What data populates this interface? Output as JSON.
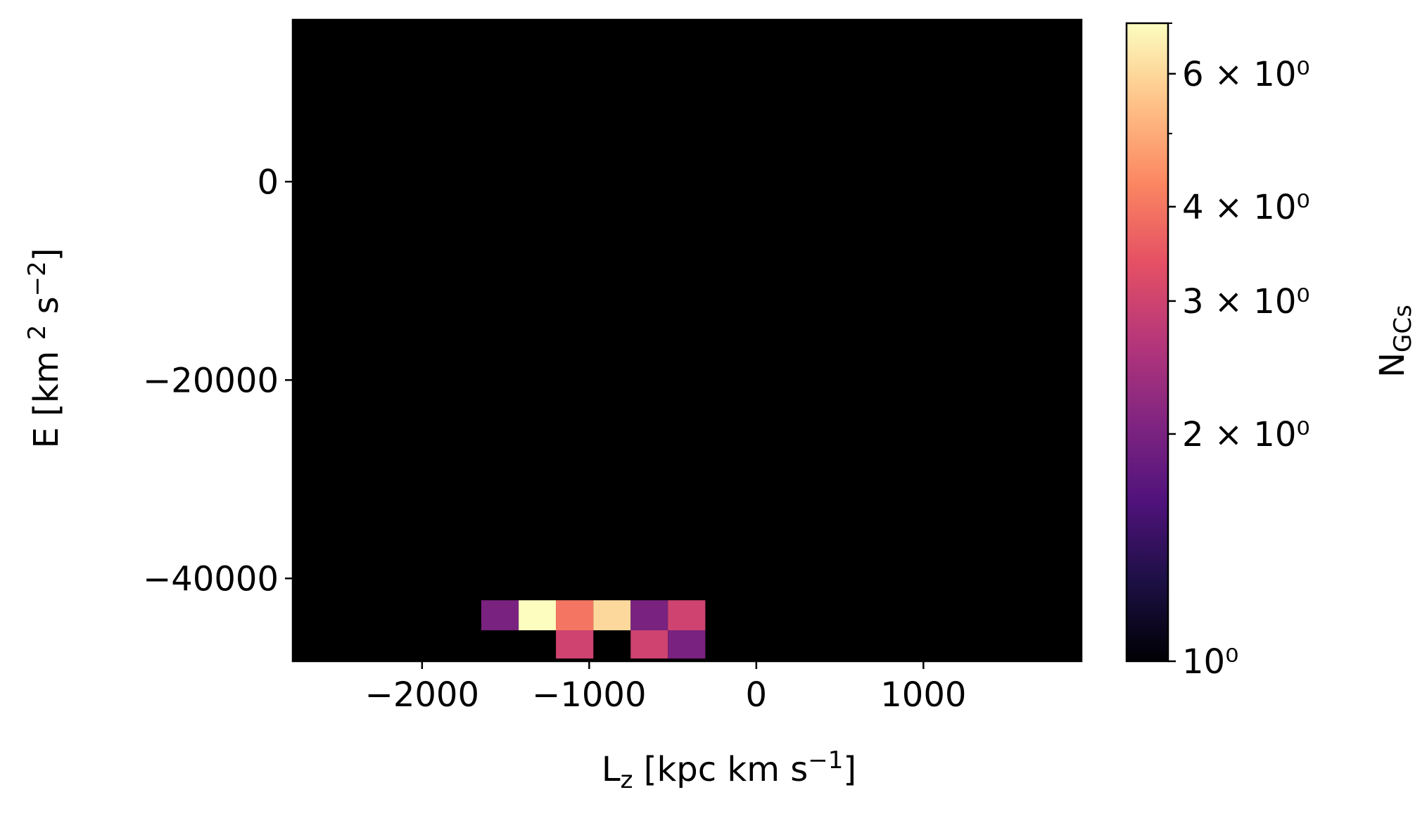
{
  "chart_data": {
    "type": "hist2d",
    "xlabel": [
      "L",
      "z",
      " [kpc km s",
      "−1",
      "]"
    ],
    "ylabel": [
      "E [km ",
      "2",
      " s",
      "−2",
      "]"
    ],
    "xbins": [
      -1646,
      -1422,
      -1199,
      -975,
      -752,
      -529,
      -305
    ],
    "ybins": [
      -48073,
      -45229,
      -42202
    ],
    "values": [
      [
        null,
        null,
        3,
        null,
        3,
        2
      ],
      [
        2,
        7,
        4,
        6,
        2,
        3
      ]
    ],
    "xlim": [
      -2774,
      1946
    ],
    "ylim": [
      -48350,
      16330
    ],
    "xticks": [
      {
        "value": -2000,
        "label": "−2000"
      },
      {
        "value": -1000,
        "label": "−1000"
      },
      0,
      1000
    ],
    "yticks": [
      0,
      {
        "value": -20000,
        "label": "−20000"
      },
      {
        "value": -40000,
        "label": "−40000"
      }
    ],
    "background": "#000000",
    "colorbar": {
      "label": [
        "N",
        "GCs"
      ],
      "log": true,
      "clim": [
        1,
        7
      ],
      "ticks": [
        {
          "value": 1,
          "label": "10⁰"
        },
        {
          "value": 2,
          "label": "2 × 10⁰"
        },
        {
          "value": 3,
          "label": "3 × 10⁰"
        },
        {
          "value": 4,
          "label": "4 × 10⁰"
        },
        {
          "value": 6,
          "label": "6 × 10⁰"
        }
      ],
      "minor_ticks": [
        5,
        7
      ],
      "colormap": [
        "#000004",
        "#1c1044",
        "#4f127b",
        "#812581",
        "#b5367a",
        "#e55064",
        "#fb8761",
        "#fec287",
        "#fcfdbf"
      ]
    }
  }
}
